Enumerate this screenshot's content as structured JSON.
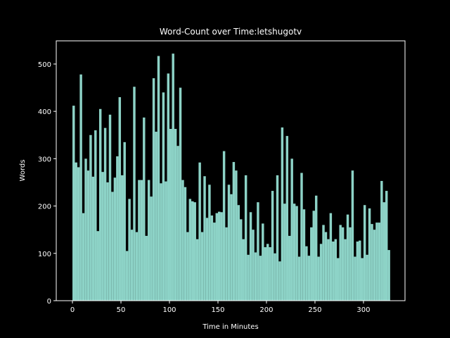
{
  "chart_data": {
    "type": "histogram",
    "title": "Word-Count over Time:letshugotv",
    "x_label": "Time in Minutes",
    "y_label": "Words",
    "color": "#8dd3c7",
    "bins": [
      0,
      2.5,
      5,
      7.5,
      10,
      12.5,
      15,
      17.5,
      20,
      22.5,
      25,
      27.5,
      30,
      32.5,
      35,
      37.5,
      40,
      42.5,
      45,
      47.5,
      50,
      52.5,
      55,
      57.5,
      60,
      62.5,
      65,
      67.5,
      70,
      72.5,
      75,
      77.5,
      80,
      82.5,
      85,
      87.5,
      90,
      92.5,
      95,
      97.5,
      100,
      102.5,
      105,
      107.5,
      110,
      112.5,
      115,
      117.5,
      120,
      122.5,
      125,
      127.5,
      130,
      132.5,
      135,
      137.5,
      140,
      142.5,
      145,
      147.5,
      150,
      152.5,
      155,
      157.5,
      160,
      162.5,
      165,
      167.5,
      170,
      172.5,
      175,
      177.5,
      180,
      182.5,
      185,
      187.5,
      190,
      192.5,
      195,
      197.5,
      200,
      202.5,
      205,
      207.5,
      210,
      212.5,
      215,
      217.5,
      220,
      222.5,
      225,
      227.5,
      230,
      232.5,
      235,
      237.5,
      240,
      242.5,
      245,
      247.5,
      250,
      252.5,
      255,
      257.5,
      260,
      262.5,
      265,
      267.5,
      270,
      272.5,
      275,
      277.5,
      280,
      282.5,
      285,
      287.5,
      290,
      292.5,
      295,
      297.5,
      300,
      302.5,
      305,
      307.5,
      310,
      312.5,
      315,
      317.5,
      320,
      322.5,
      325,
      327.5
    ],
    "values": [
      412,
      292,
      282,
      478,
      185,
      300,
      275,
      350,
      262,
      360,
      147,
      405,
      272,
      365,
      250,
      393,
      230,
      260,
      305,
      430,
      265,
      335,
      105,
      215,
      150,
      452,
      145,
      255,
      255,
      387,
      137,
      255,
      220,
      470,
      357,
      517,
      248,
      440,
      252,
      480,
      363,
      522,
      363,
      327,
      450,
      255,
      240,
      145,
      215,
      210,
      208,
      130,
      292,
      145,
      263,
      175,
      245,
      180,
      165,
      185,
      188,
      187,
      316,
      155,
      245,
      225,
      293,
      275,
      202,
      172,
      130,
      265,
      97,
      187,
      150,
      102,
      208,
      95,
      163,
      113,
      120,
      113,
      232,
      100,
      265,
      83,
      366,
      205,
      348,
      137,
      300,
      205,
      200,
      93,
      270,
      193,
      115,
      95,
      155,
      190,
      222,
      93,
      120,
      160,
      145,
      130,
      185,
      125,
      130,
      90,
      160,
      155,
      130,
      182,
      155,
      275,
      93,
      125,
      127,
      90,
      202,
      97,
      195,
      162,
      150,
      165,
      165,
      253,
      208,
      232,
      107
    ],
    "xlim": [
      -16.7,
      342.8
    ],
    "ylim": [
      0,
      549
    ],
    "xticks": [
      0,
      50,
      100,
      150,
      200,
      250,
      300
    ],
    "yticks": [
      0,
      100,
      200,
      300,
      400,
      500
    ]
  }
}
